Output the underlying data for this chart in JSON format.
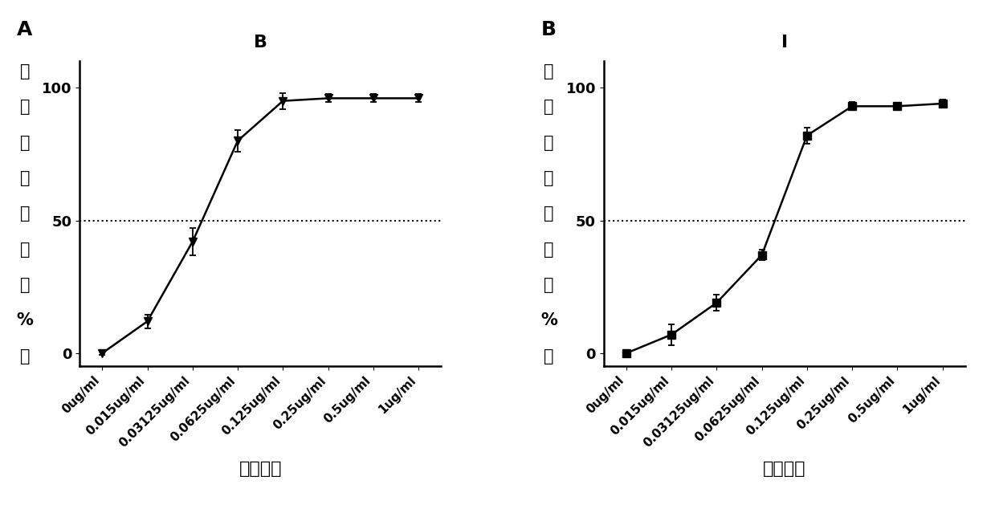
{
  "panel_A": {
    "panel_label": "A",
    "subtitle": "B",
    "x_labels": [
      "0ug/ml",
      "0.015ug/ml",
      "0.03125ug/ml",
      "0.0625ug/ml",
      "0.125ug/ml",
      "0.25ug/ml",
      "0.5ug/ml",
      "1ug/ml"
    ],
    "y_values": [
      0,
      12,
      42,
      80,
      95,
      96,
      96,
      96
    ],
    "y_errors": [
      0.5,
      2.5,
      5,
      4,
      3,
      1.5,
      1.5,
      1.5
    ],
    "marker": "v",
    "ylabel_chars": [
      "抗",
      "体",
      "阻",
      "断",
      "效",
      "率",
      "（",
      "%",
      "）"
    ],
    "xlabel": "抗体浓度",
    "hline": 50,
    "ylim": [
      -5,
      110
    ],
    "yticks": [
      0,
      50,
      100
    ]
  },
  "panel_B": {
    "panel_label": "B",
    "subtitle": "I",
    "x_labels": [
      "0ug/ml",
      "0.015ug/ml",
      "0.03125ug/ml",
      "0.0625ug/ml",
      "0.125ug/ml",
      "0.25ug/ml",
      "0.5ug/ml",
      "1ug/ml"
    ],
    "y_values": [
      0,
      7,
      19,
      37,
      82,
      93,
      93,
      94
    ],
    "y_errors": [
      0.5,
      4,
      3,
      2,
      3,
      1.5,
      1,
      1.5
    ],
    "marker": "s",
    "ylabel_chars": [
      "抗",
      "体",
      "阻",
      "断",
      "效",
      "率",
      "（",
      "%",
      "）"
    ],
    "xlabel": "抗体浓度",
    "hline": 50,
    "ylim": [
      -5,
      110
    ],
    "yticks": [
      0,
      50,
      100
    ]
  },
  "line_color": "#000000",
  "background_color": "#ffffff",
  "font_size_panel_label": 18,
  "font_size_subtitle": 16,
  "font_size_tick": 11,
  "font_size_xlabel": 16,
  "font_size_ylabel": 15
}
